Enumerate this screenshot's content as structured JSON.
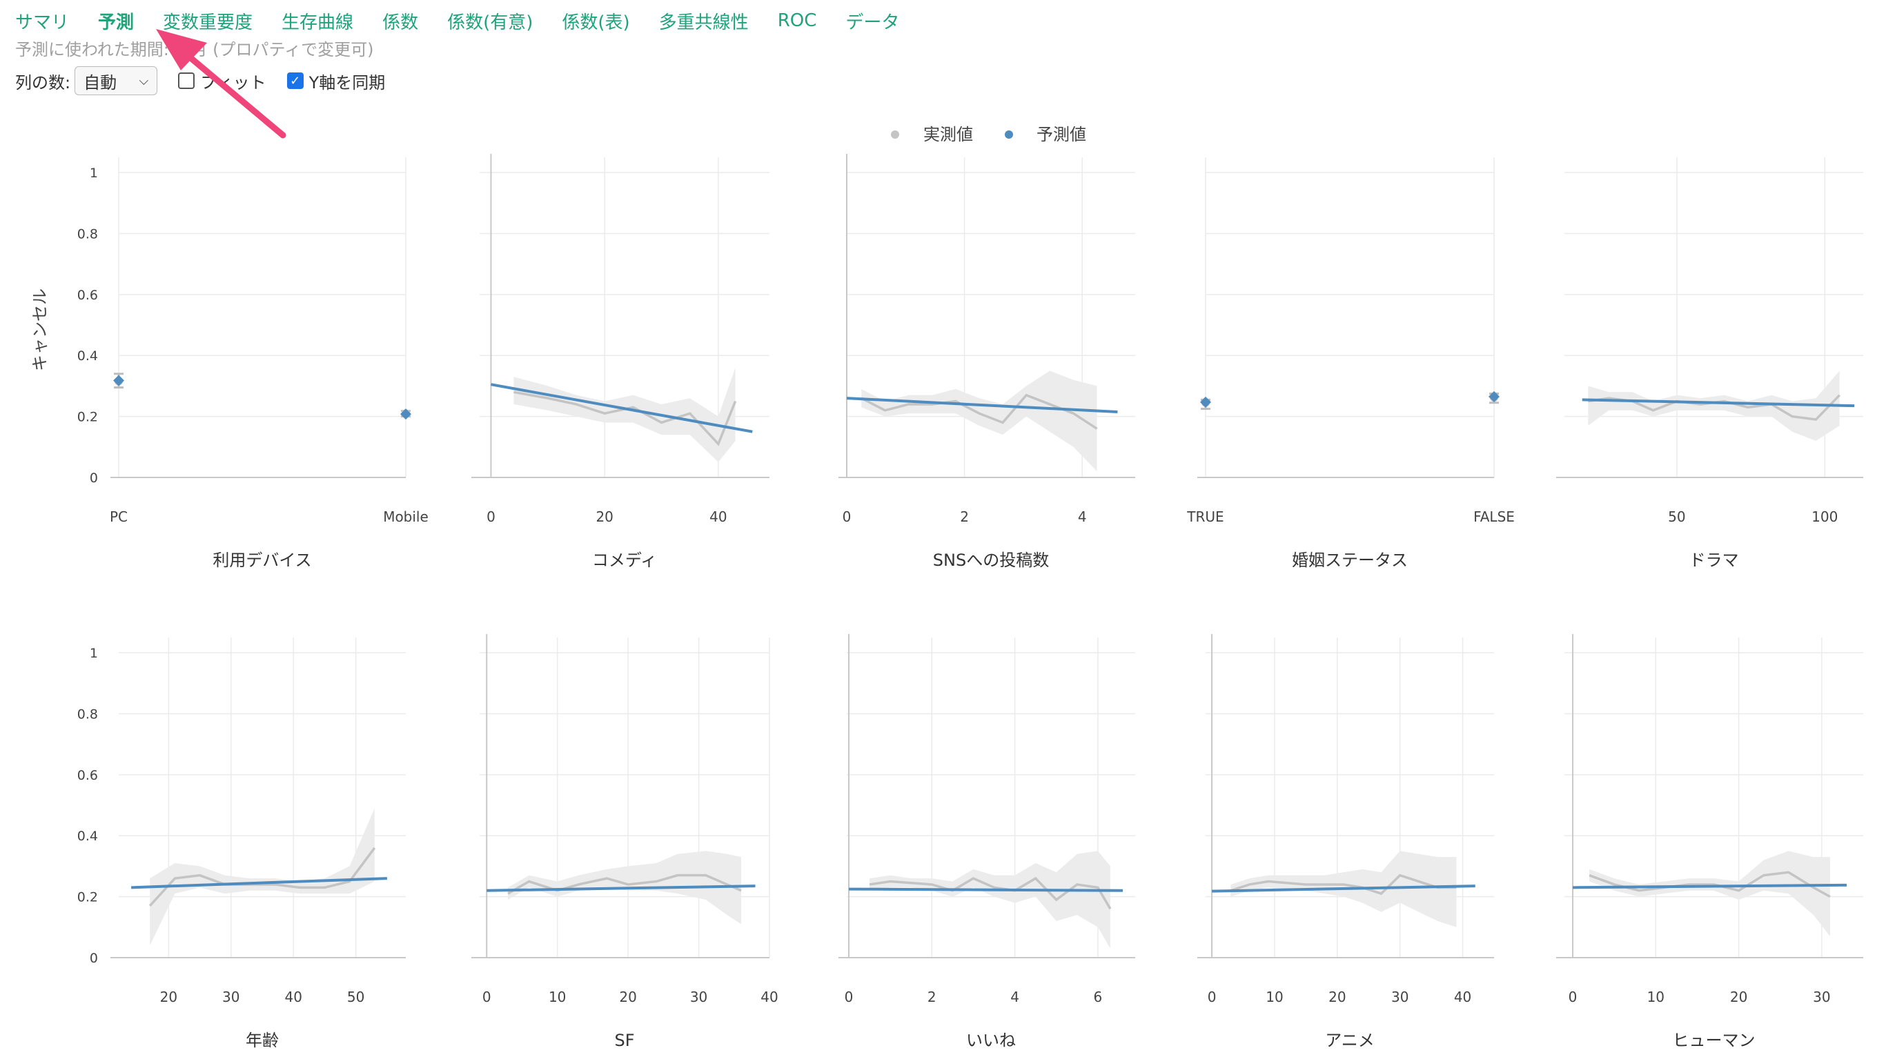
{
  "tabs": [
    {
      "label": "サマリ",
      "active": false
    },
    {
      "label": "予測",
      "active": true
    },
    {
      "label": "変数重要度",
      "active": false
    },
    {
      "label": "生存曲線",
      "active": false
    },
    {
      "label": "係数",
      "active": false
    },
    {
      "label": "係数(有意)",
      "active": false
    },
    {
      "label": "係数(表)",
      "active": false
    },
    {
      "label": "多重共線性",
      "active": false
    },
    {
      "label": "ROC",
      "active": false
    },
    {
      "label": "データ",
      "active": false
    }
  ],
  "subnote": "予測に使われた期間: ヶ月 (プロパティで変更可)",
  "controls": {
    "columns_label": "列の数:",
    "columns_value": "自動",
    "fit_label": "フィット",
    "fit_checked": false,
    "sync_y_label": "Y軸を同期",
    "sync_y_checked": true
  },
  "colors": {
    "actual": "#c4c4c4",
    "predicted": "#4e8bbf",
    "band": "#ececec",
    "accent": "#1fa37a",
    "arrow": "#f0457a"
  },
  "chart_data": {
    "type": "line",
    "legend": {
      "position": "top-center",
      "entries": [
        "実測値",
        "予測値"
      ]
    },
    "ylabel": "キャンセル",
    "ylim": [
      0,
      1.05
    ],
    "yticks": [
      0,
      0.2,
      0.4,
      0.6,
      0.8,
      1
    ],
    "panels": [
      {
        "xlabel": "利用デバイス",
        "type": "categorical",
        "categories": [
          "PC",
          "Mobile"
        ],
        "actual": [
          0.315,
          0.21
        ],
        "predicted": [
          0.318,
          0.208
        ],
        "err_low": [
          0.295,
          0.2
        ],
        "err_high": [
          0.34,
          0.218
        ]
      },
      {
        "xlabel": "コメディ",
        "type": "line",
        "xlim": [
          -2,
          49
        ],
        "xticks": [
          0,
          20,
          40
        ],
        "yaxis_line": true,
        "actual_x": [
          4,
          10,
          15,
          20,
          25,
          30,
          35,
          40,
          43
        ],
        "actual_y": [
          0.28,
          0.26,
          0.24,
          0.21,
          0.23,
          0.18,
          0.21,
          0.11,
          0.25
        ],
        "band_low": [
          0.24,
          0.22,
          0.2,
          0.18,
          0.18,
          0.14,
          0.14,
          0.05,
          0.12
        ],
        "band_high": [
          0.33,
          0.3,
          0.27,
          0.25,
          0.27,
          0.24,
          0.26,
          0.2,
          0.36
        ],
        "pred_x": [
          0,
          46
        ],
        "pred_y": [
          0.305,
          0.15
        ]
      },
      {
        "xlabel": "SNSへの投稿数",
        "type": "line",
        "xlim": [
          0,
          4.9
        ],
        "xticks": [
          0,
          2,
          4
        ],
        "yaxis_line": true,
        "actual_x": [
          0.25,
          0.65,
          1.05,
          1.45,
          1.85,
          2.25,
          2.65,
          3.05,
          3.45,
          3.85,
          4.25
        ],
        "actual_y": [
          0.26,
          0.22,
          0.24,
          0.24,
          0.25,
          0.21,
          0.18,
          0.27,
          0.24,
          0.21,
          0.16
        ],
        "band_low": [
          0.23,
          0.2,
          0.21,
          0.21,
          0.21,
          0.17,
          0.14,
          0.2,
          0.15,
          0.1,
          0.02
        ],
        "band_high": [
          0.29,
          0.25,
          0.27,
          0.27,
          0.29,
          0.26,
          0.24,
          0.3,
          0.35,
          0.32,
          0.3
        ],
        "pred_x": [
          0,
          4.6
        ],
        "pred_y": [
          0.26,
          0.215
        ]
      },
      {
        "xlabel": "婚姻ステータス",
        "type": "categorical",
        "categories": [
          "TRUE",
          "FALSE"
        ],
        "actual": [
          0.245,
          0.262
        ],
        "predicted": [
          0.247,
          0.265
        ],
        "err_low": [
          0.225,
          0.245
        ],
        "err_high": [
          0.255,
          0.275
        ]
      },
      {
        "xlabel": "ドラマ",
        "type": "line",
        "xlim": [
          12,
          113
        ],
        "xticks": [
          50,
          100
        ],
        "yaxis_line": false,
        "actual_x": [
          20,
          27,
          35,
          42,
          50,
          58,
          66,
          74,
          82,
          89,
          97,
          105
        ],
        "actual_y": [
          0.25,
          0.26,
          0.25,
          0.22,
          0.25,
          0.24,
          0.25,
          0.23,
          0.24,
          0.2,
          0.19,
          0.27
        ],
        "band_low": [
          0.17,
          0.22,
          0.22,
          0.2,
          0.22,
          0.22,
          0.22,
          0.2,
          0.2,
          0.15,
          0.12,
          0.17
        ],
        "band_high": [
          0.3,
          0.28,
          0.28,
          0.25,
          0.27,
          0.26,
          0.27,
          0.25,
          0.27,
          0.25,
          0.26,
          0.35
        ],
        "pred_x": [
          18,
          110
        ],
        "pred_y": [
          0.255,
          0.235
        ]
      },
      {
        "xlabel": "年齢",
        "type": "line",
        "xlim": [
          12,
          58
        ],
        "xticks": [
          20,
          30,
          40,
          50
        ],
        "yaxis_line": false,
        "actual_x": [
          17,
          21,
          25,
          29,
          33,
          37,
          41,
          45,
          49,
          53
        ],
        "actual_y": [
          0.17,
          0.26,
          0.27,
          0.24,
          0.24,
          0.24,
          0.23,
          0.23,
          0.25,
          0.36
        ],
        "band_low": [
          0.04,
          0.21,
          0.23,
          0.21,
          0.22,
          0.22,
          0.21,
          0.21,
          0.21,
          0.25
        ],
        "band_high": [
          0.26,
          0.31,
          0.3,
          0.27,
          0.26,
          0.26,
          0.25,
          0.26,
          0.3,
          0.49
        ],
        "pred_x": [
          14,
          55
        ],
        "pred_y": [
          0.23,
          0.26
        ]
      },
      {
        "xlabel": "SF",
        "type": "line",
        "xlim": [
          -1,
          40
        ],
        "xticks": [
          0,
          10,
          20,
          30,
          40
        ],
        "yaxis_line": true,
        "actual_x": [
          3,
          6,
          10,
          13,
          17,
          20,
          24,
          27,
          31,
          34,
          36
        ],
        "actual_y": [
          0.21,
          0.25,
          0.22,
          0.24,
          0.26,
          0.24,
          0.25,
          0.27,
          0.27,
          0.24,
          0.22
        ],
        "band_low": [
          0.19,
          0.23,
          0.2,
          0.22,
          0.23,
          0.22,
          0.22,
          0.21,
          0.19,
          0.14,
          0.11
        ],
        "band_high": [
          0.23,
          0.27,
          0.25,
          0.27,
          0.29,
          0.3,
          0.31,
          0.34,
          0.35,
          0.34,
          0.33
        ],
        "pred_x": [
          0,
          38
        ],
        "pred_y": [
          0.22,
          0.235
        ]
      },
      {
        "xlabel": "いいね",
        "type": "line",
        "xlim": [
          -0.05,
          6.9
        ],
        "xticks": [
          0,
          2,
          4,
          6
        ],
        "yaxis_line": true,
        "actual_x": [
          0.5,
          1,
          1.5,
          2,
          2.5,
          3,
          3.5,
          4,
          4.5,
          5,
          5.5,
          6,
          6.3
        ],
        "actual_y": [
          0.24,
          0.25,
          0.245,
          0.24,
          0.22,
          0.26,
          0.23,
          0.22,
          0.26,
          0.19,
          0.24,
          0.23,
          0.16
        ],
        "band_low": [
          0.22,
          0.23,
          0.23,
          0.22,
          0.2,
          0.23,
          0.2,
          0.18,
          0.2,
          0.12,
          0.14,
          0.1,
          0.03
        ],
        "band_high": [
          0.26,
          0.27,
          0.26,
          0.26,
          0.25,
          0.29,
          0.27,
          0.27,
          0.31,
          0.28,
          0.34,
          0.35,
          0.3
        ],
        "pred_x": [
          0,
          6.6
        ],
        "pred_y": [
          0.225,
          0.22
        ]
      },
      {
        "xlabel": "アニメ",
        "type": "line",
        "xlim": [
          -1,
          45
        ],
        "xticks": [
          0,
          10,
          20,
          30,
          40
        ],
        "yaxis_line": true,
        "actual_x": [
          3,
          6,
          9,
          12,
          15,
          18,
          21,
          24,
          27,
          30,
          33,
          36,
          39
        ],
        "actual_y": [
          0.22,
          0.24,
          0.25,
          0.245,
          0.24,
          0.24,
          0.24,
          0.23,
          0.21,
          0.27,
          0.25,
          0.23,
          0.23
        ],
        "band_low": [
          0.2,
          0.22,
          0.23,
          0.22,
          0.22,
          0.21,
          0.2,
          0.18,
          0.15,
          0.18,
          0.15,
          0.12,
          0.1
        ],
        "band_high": [
          0.24,
          0.26,
          0.27,
          0.27,
          0.27,
          0.27,
          0.28,
          0.29,
          0.28,
          0.35,
          0.34,
          0.33,
          0.33
        ],
        "pred_x": [
          0,
          42
        ],
        "pred_y": [
          0.218,
          0.235
        ]
      },
      {
        "xlabel": "ヒューマン",
        "type": "line",
        "xlim": [
          -1,
          35
        ],
        "xticks": [
          0,
          10,
          20,
          30
        ],
        "yaxis_line": true,
        "actual_x": [
          2,
          5,
          8,
          11,
          14,
          17,
          20,
          23,
          26,
          29,
          31
        ],
        "actual_y": [
          0.27,
          0.24,
          0.22,
          0.23,
          0.24,
          0.24,
          0.22,
          0.27,
          0.28,
          0.23,
          0.2
        ],
        "band_low": [
          0.25,
          0.22,
          0.2,
          0.21,
          0.22,
          0.22,
          0.19,
          0.22,
          0.21,
          0.14,
          0.07
        ],
        "band_high": [
          0.29,
          0.26,
          0.24,
          0.25,
          0.26,
          0.26,
          0.25,
          0.32,
          0.35,
          0.33,
          0.33
        ],
        "pred_x": [
          0,
          33
        ],
        "pred_y": [
          0.23,
          0.238
        ]
      }
    ]
  }
}
